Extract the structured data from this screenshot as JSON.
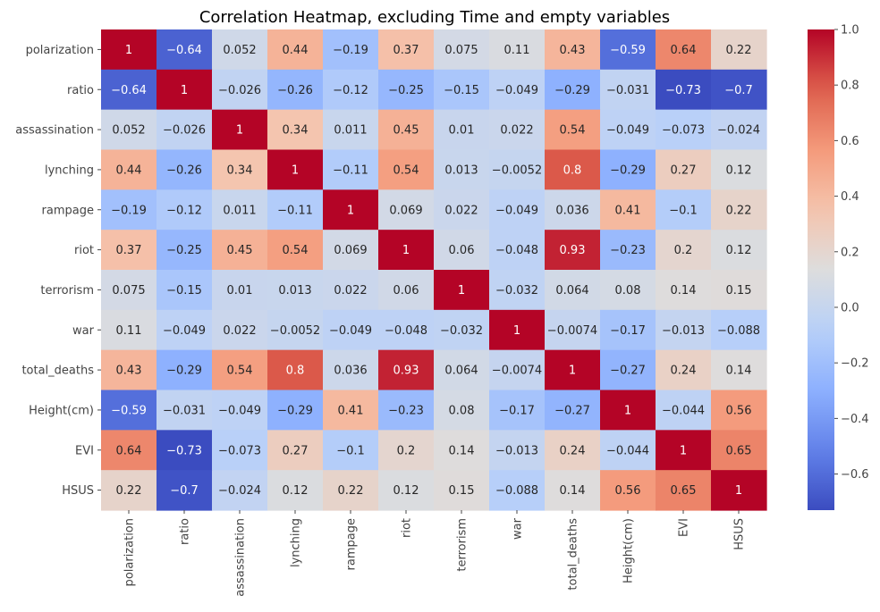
{
  "chart_data": {
    "type": "heatmap",
    "title": "Correlation Heatmap, excluding Time and empty variables",
    "variables": [
      "polarization",
      "ratio",
      "assassination",
      "lynching",
      "rampage",
      "riot",
      "terrorism",
      "war",
      "total_deaths",
      "Height(cm)",
      "EVI",
      "HSUS"
    ],
    "matrix": [
      [
        1,
        -0.64,
        0.052,
        0.44,
        -0.19,
        0.37,
        0.075,
        0.11,
        0.43,
        -0.59,
        0.64,
        0.22
      ],
      [
        -0.64,
        1,
        -0.026,
        -0.26,
        -0.12,
        -0.25,
        -0.15,
        -0.049,
        -0.29,
        -0.031,
        -0.73,
        -0.7
      ],
      [
        0.052,
        -0.026,
        1,
        0.34,
        0.011,
        0.45,
        0.01,
        0.022,
        0.54,
        -0.049,
        -0.073,
        -0.024
      ],
      [
        0.44,
        -0.26,
        0.34,
        1,
        -0.11,
        0.54,
        0.013,
        -0.0052,
        0.8,
        -0.29,
        0.27,
        0.12
      ],
      [
        -0.19,
        -0.12,
        0.011,
        -0.11,
        1,
        0.069,
        0.022,
        -0.049,
        0.036,
        0.41,
        -0.1,
        0.22
      ],
      [
        0.37,
        -0.25,
        0.45,
        0.54,
        0.069,
        1,
        0.06,
        -0.048,
        0.93,
        -0.23,
        0.2,
        0.12
      ],
      [
        0.075,
        -0.15,
        0.01,
        0.013,
        0.022,
        0.06,
        1,
        -0.032,
        0.064,
        0.08,
        0.14,
        0.15
      ],
      [
        0.11,
        -0.049,
        0.022,
        -0.0052,
        -0.049,
        -0.048,
        -0.032,
        1,
        -0.0074,
        -0.17,
        -0.013,
        -0.088
      ],
      [
        0.43,
        -0.29,
        0.54,
        0.8,
        0.036,
        0.93,
        0.064,
        -0.0074,
        1,
        -0.27,
        0.24,
        0.14
      ],
      [
        -0.59,
        -0.031,
        -0.049,
        -0.29,
        0.41,
        -0.23,
        0.08,
        -0.17,
        -0.27,
        1,
        -0.044,
        0.56
      ],
      [
        0.64,
        -0.73,
        -0.073,
        0.27,
        -0.1,
        0.2,
        0.14,
        -0.013,
        0.24,
        -0.044,
        1,
        0.65
      ],
      [
        0.22,
        -0.7,
        -0.024,
        0.12,
        0.22,
        0.12,
        0.15,
        -0.088,
        0.14,
        0.56,
        0.65,
        1
      ]
    ],
    "colormap": "coolwarm",
    "color_range": [
      -0.73,
      1
    ],
    "colorbar_ticks": [
      1.0,
      0.8,
      0.6,
      0.4,
      0.2,
      0.0,
      -0.2,
      -0.4,
      -0.6
    ],
    "colorbar_tick_labels": [
      "1.0",
      "0.8",
      "0.6",
      "0.4",
      "0.2",
      "0.0",
      "−0.2",
      "−0.4",
      "−0.6"
    ],
    "annotations": true,
    "grid": false
  }
}
